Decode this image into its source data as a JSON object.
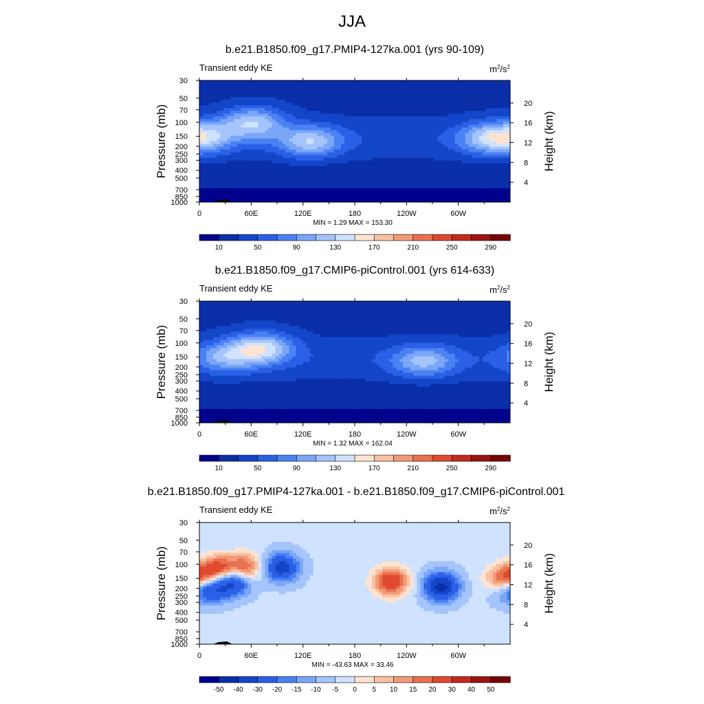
{
  "page_title": "JJA",
  "chart_data": [
    {
      "type": "heatmap",
      "title": "b.e21.B1850.f09_g17.PMIP4-127ka.001 (yrs 90-109)",
      "subtitle_left": "Transient eddy KE",
      "units": {
        "base": "m",
        "exp": "2",
        "sep": "/s",
        "exp2": "2"
      },
      "ylabel": "Pressure (mb)",
      "ylabel_right": "Height (km)",
      "x_ticks": [
        "0",
        "60E",
        "120E",
        "180",
        "120W",
        "60W"
      ],
      "y_ticks": [
        "30",
        "50",
        "70",
        "100",
        "150",
        "200",
        "250",
        "300",
        "400",
        "500",
        "700",
        "850",
        "1000"
      ],
      "y_ticks_right": [
        "20",
        "16",
        "12",
        "8",
        "4"
      ],
      "stats": "MIN =   1.29  MAX = 153.30",
      "min": 1.29,
      "max": 153.3,
      "colorbar_labels": [
        "10",
        "50",
        "90",
        "130",
        "170",
        "210",
        "250",
        "290"
      ],
      "colorbar_colors": [
        "#00008c",
        "#0a2fa8",
        "#1346c8",
        "#2a60e6",
        "#4a82f4",
        "#7aa6f8",
        "#a5c4fc",
        "#cfe2ff",
        "#fde3d2",
        "#f9c0a2",
        "#f29a76",
        "#ea7250",
        "#df4a2e",
        "#c42a1c",
        "#9c1410",
        "#760606"
      ],
      "jets": [
        {
          "lon": 62,
          "p": 100,
          "value": 130
        },
        {
          "lon": 128,
          "p": 175,
          "value": 122
        },
        {
          "lon": 8,
          "p": 150,
          "value": 105
        },
        {
          "lon": 335,
          "p": 160,
          "value": 112
        }
      ]
    },
    {
      "type": "heatmap",
      "title": "b.e21.B1850.f09_g17.CMIP6-piControl.001 (yrs 614-633)",
      "subtitle_left": "Transient eddy KE",
      "units": {
        "base": "m",
        "exp": "2",
        "sep": "/s",
        "exp2": "2"
      },
      "ylabel": "Pressure (mb)",
      "ylabel_right": "Height (km)",
      "x_ticks": [
        "0",
        "60E",
        "120E",
        "180",
        "120W",
        "60W"
      ],
      "y_ticks": [
        "30",
        "50",
        "70",
        "100",
        "150",
        "200",
        "250",
        "300",
        "400",
        "500",
        "700",
        "850",
        "1000"
      ],
      "y_ticks_right": [
        "20",
        "16",
        "12",
        "8",
        "4"
      ],
      "stats": "MIN =   1.32  MAX = 162.04",
      "min": 1.32,
      "max": 162.04,
      "colorbar_labels": [
        "10",
        "50",
        "90",
        "130",
        "170",
        "210",
        "250",
        "290"
      ],
      "colorbar_colors": [
        "#00008c",
        "#0a2fa8",
        "#1346c8",
        "#2a60e6",
        "#4a82f4",
        "#7aa6f8",
        "#a5c4fc",
        "#cfe2ff",
        "#fde3d2",
        "#f9c0a2",
        "#f29a76",
        "#ea7250",
        "#df4a2e",
        "#c42a1c",
        "#9c1410",
        "#760606"
      ],
      "jets": [
        {
          "lon": 72,
          "p": 115,
          "value": 140
        },
        {
          "lon": 30,
          "p": 150,
          "value": 100
        },
        {
          "lon": 260,
          "p": 170,
          "value": 112
        }
      ]
    },
    {
      "type": "heatmap",
      "title": "b.e21.B1850.f09_g17.PMIP4-127ka.001 - b.e21.B1850.f09_g17.CMIP6-piControl.001",
      "subtitle_left": "Transient eddy KE",
      "units": {
        "base": "m",
        "exp": "2",
        "sep": "/s",
        "exp2": "2"
      },
      "ylabel": "Pressure (mb)",
      "ylabel_right": "Height (km)",
      "x_ticks": [
        "0",
        "60E",
        "120E",
        "180",
        "120W",
        "60W"
      ],
      "y_ticks": [
        "30",
        "50",
        "70",
        "100",
        "150",
        "200",
        "250",
        "300",
        "400",
        "500",
        "700",
        "850",
        "1000"
      ],
      "y_ticks_right": [
        "20",
        "16",
        "12",
        "8",
        "4"
      ],
      "stats": "MIN = -43.63  MAX =  33.46",
      "min": -43.63,
      "max": 33.46,
      "colorbar_labels": [
        "-50",
        "-40",
        "-30",
        "-20",
        "-15",
        "-10",
        "-5",
        "0",
        "5",
        "10",
        "15",
        "20",
        "30",
        "40",
        "50"
      ],
      "colorbar_colors": [
        "#00008c",
        "#0a2fa8",
        "#1346c8",
        "#2a60e6",
        "#4a82f4",
        "#7aa6f8",
        "#a5c4fc",
        "#cfe2ff",
        "#fde3d2",
        "#f9c0a2",
        "#f29a76",
        "#ea7250",
        "#df4a2e",
        "#c42a1c",
        "#9c1410",
        "#760606"
      ],
      "anomalies": [
        {
          "lon": 22,
          "p": 115,
          "value": 28
        },
        {
          "lon": 52,
          "p": 110,
          "value": 26
        },
        {
          "lon": 3,
          "p": 150,
          "value": 20
        },
        {
          "lon": 40,
          "p": 165,
          "value": -30
        },
        {
          "lon": 15,
          "p": 200,
          "value": -26
        },
        {
          "lon": 95,
          "p": 110,
          "value": -32
        },
        {
          "lon": 222,
          "p": 165,
          "value": 33
        },
        {
          "lon": 280,
          "p": 190,
          "value": -40
        },
        {
          "lon": 350,
          "p": 160,
          "value": 22
        },
        {
          "lon": 355,
          "p": 200,
          "value": -18
        }
      ]
    }
  ]
}
